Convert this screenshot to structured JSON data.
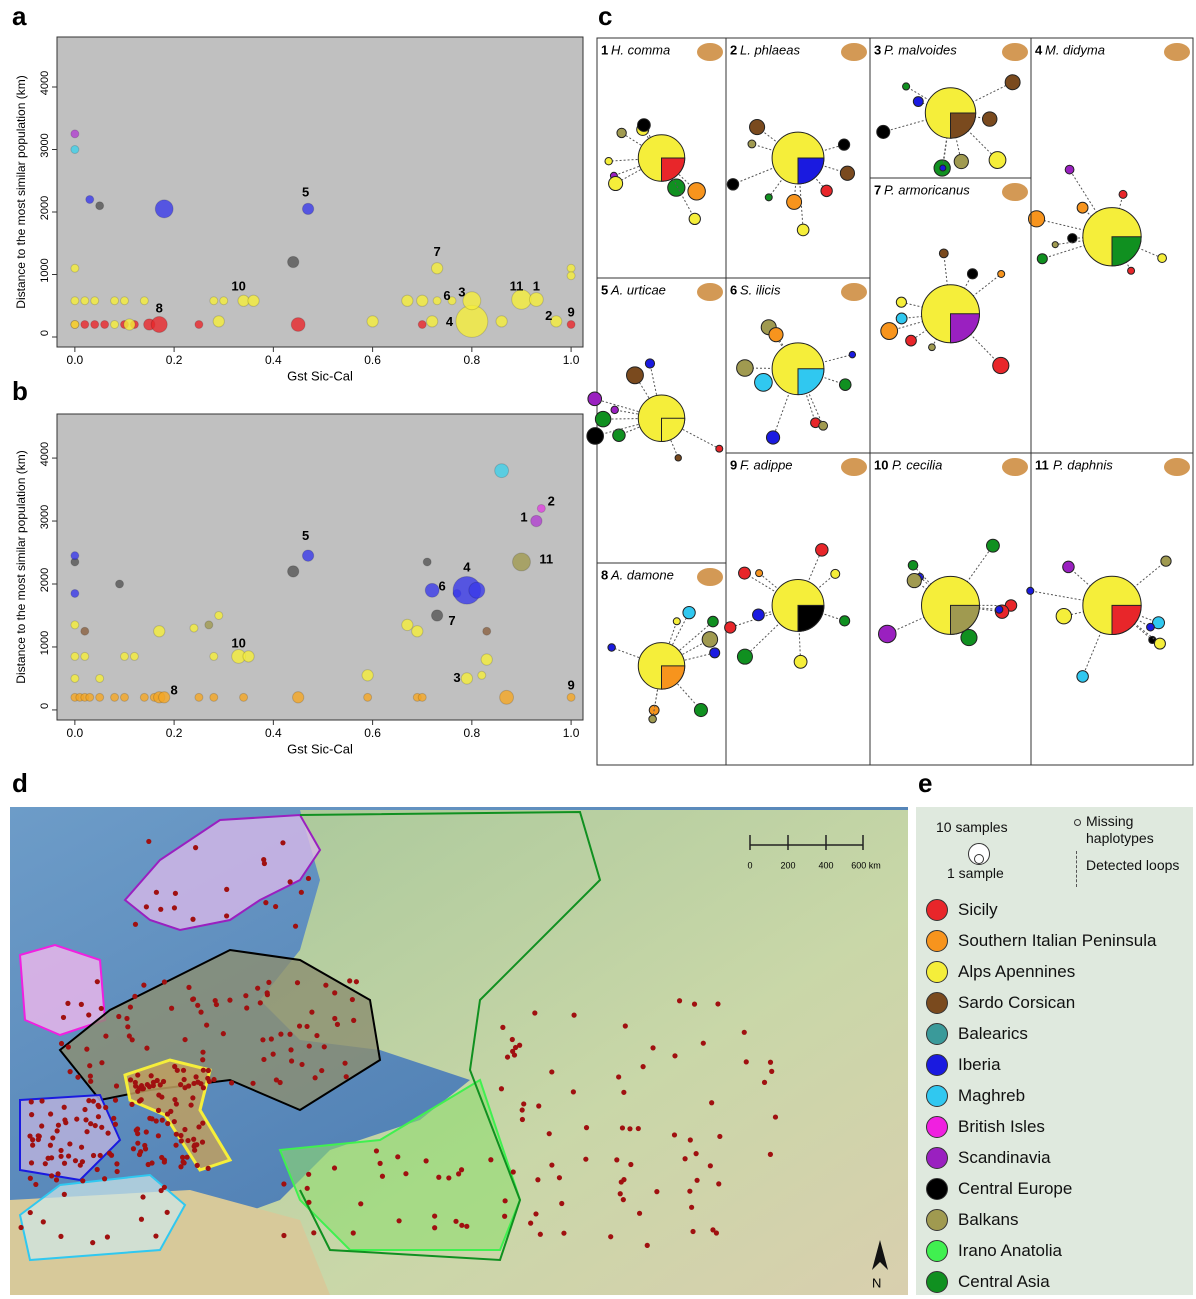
{
  "chart_data": [
    {
      "type": "scatter",
      "panel": "a",
      "x_label": "Gst Sic-Cal",
      "y_label": "Distance to the most similar population (km)",
      "xlim": [
        -0.036,
        1.024
      ],
      "ylim": [
        -160,
        4800
      ],
      "xticks": [
        {
          "value": 0,
          "label": "0.0"
        },
        0.2,
        0.4,
        0.6,
        0.8,
        {
          "value": 1,
          "label": "1.0"
        }
      ],
      "yticks": [
        0,
        1000,
        2000,
        3000,
        4000
      ],
      "x": [
        0.0,
        0.02,
        0.04,
        0.06,
        0.1,
        0.12,
        0.15,
        0.17,
        0.25,
        0.45,
        0.7,
        1.0,
        0.0,
        0.08,
        0.11,
        0.29,
        0.6,
        0.72,
        0.8,
        0.86,
        0.97,
        0.0,
        0.02,
        0.04,
        0.08,
        0.1,
        0.14,
        0.28,
        0.3,
        0.34,
        0.36,
        0.67,
        0.7,
        0.73,
        0.76,
        0.8,
        0.9,
        0.93,
        0.0,
        0.73,
        1.0,
        1.0,
        0.0,
        0.0,
        0.03,
        0.05,
        0.18,
        0.47,
        0.44
      ],
      "values": [
        200,
        200,
        200,
        200,
        200,
        200,
        200,
        200,
        200,
        200,
        200,
        200,
        200,
        200,
        200,
        250,
        250,
        250,
        250,
        250,
        250,
        580,
        580,
        580,
        580,
        580,
        580,
        580,
        580,
        580,
        580,
        580,
        580,
        580,
        580,
        580,
        600,
        600,
        1100,
        1100,
        1100,
        980,
        3250,
        3000,
        2200,
        2100,
        2050,
        2050,
        1200
      ],
      "sizes": [
        1,
        1,
        1,
        1,
        1,
        1,
        2,
        4,
        1,
        3,
        1,
        1,
        1,
        1,
        2,
        2,
        2,
        2,
        16,
        2,
        2,
        1,
        1,
        1,
        1,
        1,
        1,
        1,
        1,
        2,
        2,
        2,
        2,
        1,
        1,
        5,
        6,
        3,
        1,
        2,
        1,
        1,
        1,
        1,
        1,
        1,
        5,
        2,
        2
      ],
      "colors": [
        "#e8262a",
        "#e8262a",
        "#e8262a",
        "#e8262a",
        "#e8262a",
        "#e8262a",
        "#e8262a",
        "#e8262a",
        "#e8262a",
        "#e8262a",
        "#e8262a",
        "#e8262a",
        "#f5ee3a",
        "#f5ee3a",
        "#f5ee3a",
        "#f5ee3a",
        "#f5ee3a",
        "#f5ee3a",
        "#f5ee3a",
        "#f5ee3a",
        "#f5ee3a",
        "#f5ee3a",
        "#f5ee3a",
        "#f5ee3a",
        "#f5ee3a",
        "#f5ee3a",
        "#f5ee3a",
        "#f5ee3a",
        "#f5ee3a",
        "#f5ee3a",
        "#f5ee3a",
        "#f5ee3a",
        "#f5ee3a",
        "#f5ee3a",
        "#f5ee3a",
        "#f5ee3a",
        "#f5ee3a",
        "#f5ee3a",
        "#f5ee3a",
        "#f5ee3a",
        "#f5ee3a",
        "#f5ee3a",
        "#b040d0",
        "#40d0e8",
        "#3a3ae8",
        "#555555",
        "#3a3ae8",
        "#3a3ae8",
        "#555555"
      ],
      "annotations": [
        {
          "text": "5",
          "x": 0.465,
          "y": 2300
        },
        {
          "text": "7",
          "x": 0.73,
          "y": 1350
        },
        {
          "text": "10",
          "x": 0.33,
          "y": 800
        },
        {
          "text": "8",
          "x": 0.17,
          "y": 450
        },
        {
          "text": "6",
          "x": 0.75,
          "y": 650
        },
        {
          "text": "3",
          "x": 0.78,
          "y": 700
        },
        {
          "text": "4",
          "x": 0.755,
          "y": 230
        },
        {
          "text": "11",
          "x": 0.89,
          "y": 800
        },
        {
          "text": "1",
          "x": 0.93,
          "y": 800
        },
        {
          "text": "2",
          "x": 0.955,
          "y": 330
        },
        {
          "text": "9",
          "x": 1.0,
          "y": 380
        }
      ]
    },
    {
      "type": "scatter",
      "panel": "b",
      "x_label": "Gst Sic-Cal",
      "y_label": "Distance to the most similar population (km)",
      "xlim": [
        -0.036,
        1.024
      ],
      "ylim": [
        -160,
        4700
      ],
      "xticks": [
        {
          "value": 0,
          "label": "0.0"
        },
        0.2,
        0.4,
        0.6,
        0.8,
        {
          "value": 1,
          "label": "1.0"
        }
      ],
      "yticks": [
        0,
        1000,
        2000,
        3000,
        4000
      ],
      "x": [
        0.0,
        0.01,
        0.02,
        0.03,
        0.05,
        0.08,
        0.1,
        0.14,
        0.16,
        0.17,
        0.18,
        0.25,
        0.28,
        0.34,
        0.45,
        0.59,
        0.69,
        0.7,
        0.87,
        1.0,
        0.0,
        0.0,
        0.02,
        0.0,
        0.05,
        0.1,
        0.12,
        0.17,
        0.24,
        0.29,
        0.28,
        0.33,
        0.35,
        0.59,
        0.67,
        0.69,
        0.79,
        0.83,
        0.82,
        0.02,
        0.83,
        0.27,
        0.73,
        0.71,
        0.44,
        0.0,
        0.09,
        0.0,
        0.0,
        0.47,
        0.72,
        0.77,
        0.79,
        0.81,
        0.86,
        0.93,
        0.94,
        0.9
      ],
      "values": [
        200,
        200,
        200,
        200,
        200,
        200,
        200,
        200,
        200,
        200,
        200,
        200,
        200,
        200,
        200,
        200,
        200,
        200,
        200,
        200,
        500,
        850,
        850,
        1350,
        500,
        850,
        850,
        1250,
        1300,
        1500,
        850,
        850,
        850,
        550,
        1350,
        1250,
        500,
        800,
        550,
        1250,
        1250,
        1350,
        1500,
        2350,
        2200,
        2350,
        2000,
        2450,
        1850,
        2450,
        1900,
        1850,
        1900,
        1900,
        3800,
        3000,
        3200,
        2350
      ],
      "sizes": [
        1,
        1,
        1,
        1,
        1,
        1,
        1,
        1,
        1,
        2,
        2,
        1,
        1,
        1,
        2,
        1,
        1,
        1,
        3,
        1,
        1,
        1,
        1,
        1,
        1,
        1,
        1,
        2,
        1,
        1,
        1,
        3,
        2,
        2,
        2,
        2,
        2,
        2,
        1,
        1,
        1,
        1,
        2,
        1,
        2,
        1,
        1,
        1,
        1,
        2,
        3,
        1,
        12,
        4,
        3,
        2,
        1,
        5
      ],
      "colors": [
        "#f5a623",
        "#f5a623",
        "#f5a623",
        "#f5a623",
        "#f5a623",
        "#f5a623",
        "#f5a623",
        "#f5a623",
        "#f5a623",
        "#f5a623",
        "#f5a623",
        "#f5a623",
        "#f5a623",
        "#f5a623",
        "#f5a623",
        "#f5a623",
        "#f5a623",
        "#f5a623",
        "#f5a623",
        "#f5a623",
        "#f5ee3a",
        "#f5ee3a",
        "#f5ee3a",
        "#f5ee3a",
        "#f5ee3a",
        "#f5ee3a",
        "#f5ee3a",
        "#f5ee3a",
        "#f5ee3a",
        "#f5ee3a",
        "#f5ee3a",
        "#f5ee3a",
        "#f5ee3a",
        "#f5ee3a",
        "#f5ee3a",
        "#f5ee3a",
        "#f5ee3a",
        "#f5ee3a",
        "#f5ee3a",
        "#8a6040",
        "#8a6040",
        "#a09a50",
        "#555555",
        "#555555",
        "#555555",
        "#555555",
        "#555555",
        "#3a3ae8",
        "#3a3ae8",
        "#3a3ae8",
        "#3a3ae8",
        "#3a3ae8",
        "#3a3ae8",
        "#3a3ae8",
        "#40d0e8",
        "#b040d0",
        "#e040e0",
        "#a09a50"
      ],
      "annotations": [
        {
          "text": "5",
          "x": 0.465,
          "y": 2750
        },
        {
          "text": "4",
          "x": 0.79,
          "y": 2250
        },
        {
          "text": "6",
          "x": 0.74,
          "y": 1950
        },
        {
          "text": "7",
          "x": 0.76,
          "y": 1400
        },
        {
          "text": "10",
          "x": 0.33,
          "y": 1050
        },
        {
          "text": "8",
          "x": 0.2,
          "y": 300
        },
        {
          "text": "3",
          "x": 0.77,
          "y": 500
        },
        {
          "text": "9",
          "x": 1.0,
          "y": 380
        },
        {
          "text": "1",
          "x": 0.905,
          "y": 3050
        },
        {
          "text": "2",
          "x": 0.96,
          "y": 3300
        },
        {
          "text": "11",
          "x": 0.95,
          "y": 2380
        }
      ]
    }
  ],
  "networks": {
    "panel": "c",
    "items": [
      {
        "number": "1",
        "species": "H. comma"
      },
      {
        "number": "2",
        "species": "L. phlaeas"
      },
      {
        "number": "3",
        "species": "P. malvoides"
      },
      {
        "number": "4",
        "species": "M. didyma"
      },
      {
        "number": "5",
        "species": "A. urticae"
      },
      {
        "number": "6",
        "species": "S. ilicis"
      },
      {
        "number": "7",
        "species": "P. armoricanus"
      },
      {
        "number": "8",
        "species": "A. damone"
      },
      {
        "number": "9",
        "species": "F. adippe"
      },
      {
        "number": "10",
        "species": "P. cecilia"
      },
      {
        "number": "11",
        "species": "P. daphnis"
      }
    ]
  },
  "map": {
    "panel": "d",
    "scale_labels": [
      "0",
      "200",
      "400",
      "600 km"
    ],
    "north": "N"
  },
  "legend": {
    "panel": "e",
    "size_labels": [
      "10 samples",
      "1 sample"
    ],
    "missing": "Missing haplotypes",
    "loops": "Detected loops",
    "regions": [
      {
        "name": "Sicily",
        "color": "#e8262a"
      },
      {
        "name": "Southern Italian Peninsula",
        "color": "#f7941d"
      },
      {
        "name": "Alps Apennines",
        "color": "#f5ee3a"
      },
      {
        "name": "Sardo Corsican",
        "color": "#7a4a1e"
      },
      {
        "name": "Balearics",
        "color": "#3a9a9a"
      },
      {
        "name": "Iberia",
        "color": "#1a1ae0"
      },
      {
        "name": "Maghreb",
        "color": "#30c8f0"
      },
      {
        "name": "British Isles",
        "color": "#f020e0"
      },
      {
        "name": "Scandinavia",
        "color": "#9a20c0"
      },
      {
        "name": "Central Europe",
        "color": "#000000"
      },
      {
        "name": "Balkans",
        "color": "#a09a50"
      },
      {
        "name": "Irano Anatolia",
        "color": "#40f050"
      },
      {
        "name": "Central Asia",
        "color": "#109020"
      }
    ]
  }
}
